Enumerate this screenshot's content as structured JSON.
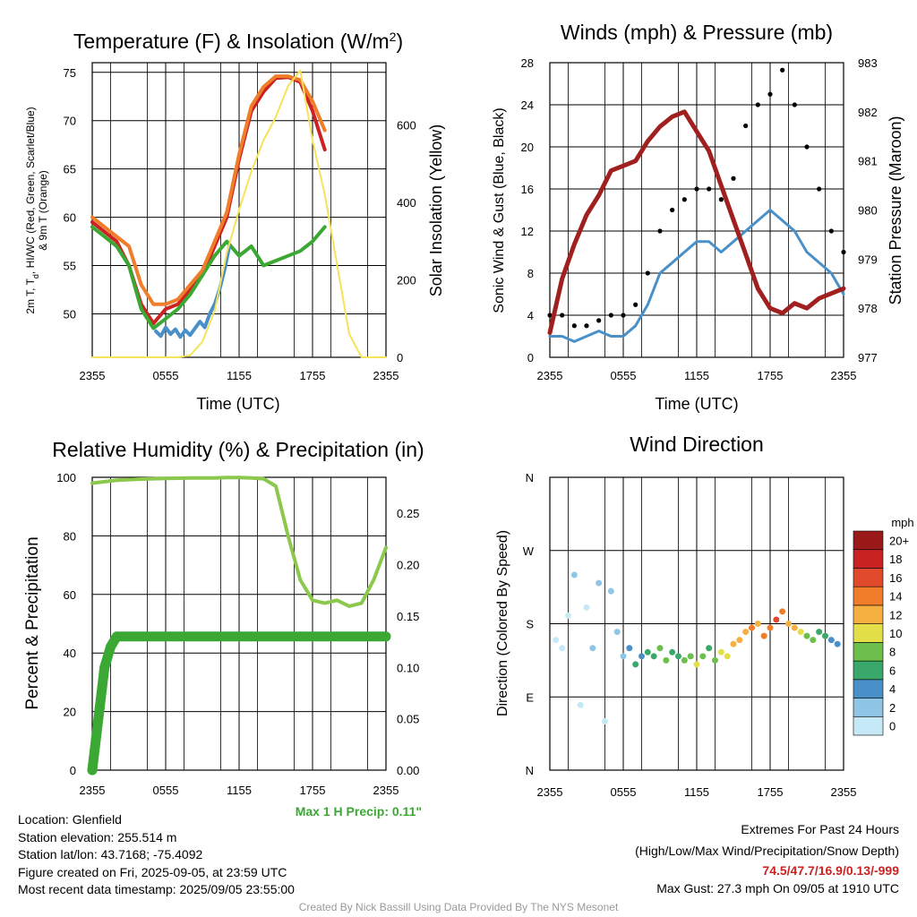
{
  "chart_data": [
    {
      "type": "line",
      "title": "Temperature (F) & Insolation (W/m²)",
      "title_main": "Temperature (F) & Insolation (W/m",
      "title_sup": "2",
      "title_end": ")",
      "xlabel": "Time (UTC)",
      "ylabel": "2m T, Td, HI/WC (Red, Green, Scarlet/Blue) & 9m T (Orange)",
      "ylabel_line1": "2m T, T",
      "ylabel_sub": "d",
      "ylabel_line1_end": ", HI/WC (Red, Green, Scarlet/Blue)",
      "ylabel_line2": "& 9m T (Orange)",
      "y2label": "Solar Insolation (Yellow)",
      "x_ticks": [
        "2355",
        "0555",
        "1155",
        "1755",
        "2355"
      ],
      "ylim": [
        45.5,
        76
      ],
      "y_ticks": [
        50,
        55,
        60,
        65,
        70,
        75
      ],
      "y2lim": [
        0,
        760
      ],
      "y2_ticks": [
        0,
        200,
        400,
        600
      ],
      "series": [
        {
          "name": "2m T",
          "color": "#cc2222",
          "axis": "left",
          "x": [
            0,
            1,
            2,
            3,
            4,
            5,
            6,
            7,
            8,
            9,
            10,
            11,
            12,
            13,
            14,
            15,
            16,
            17,
            18,
            19,
            20,
            21,
            22,
            23,
            24
          ],
          "y": [
            59.5,
            58.5,
            57.5,
            55,
            51,
            49,
            50.5,
            51,
            52.5,
            54,
            57,
            60,
            66,
            71,
            73,
            74.4,
            74.5,
            74,
            71,
            67,
            null,
            null,
            null,
            null,
            null
          ]
        },
        {
          "name": "Dew Point",
          "color": "#3aa832",
          "axis": "left",
          "x": [
            0,
            1,
            2,
            3,
            4,
            5,
            6,
            7,
            8,
            9,
            10,
            11,
            12,
            13,
            14,
            15,
            16,
            17,
            18,
            19,
            20,
            21,
            22,
            23,
            24
          ],
          "y": [
            59,
            58,
            57,
            55,
            50.5,
            48.5,
            49.5,
            50.5,
            52,
            54,
            56,
            57.5,
            56,
            57,
            55,
            55.5,
            56,
            56.5,
            57.5,
            59,
            null,
            null,
            null,
            null,
            null
          ]
        },
        {
          "name": "HI/WC",
          "color": "#4a90c8",
          "axis": "left",
          "x": [
            5.2,
            5.6,
            6,
            6.4,
            6.8,
            7.2,
            7.6,
            8,
            8.4,
            8.8,
            9.2,
            9.6,
            10,
            10.4,
            10.8,
            11.2
          ],
          "y": [
            48.2,
            47.7,
            48.6,
            47.9,
            48.4,
            47.6,
            48.3,
            47.8,
            48.5,
            49.2,
            48.6,
            50,
            51,
            52.5,
            54.5,
            57
          ]
        },
        {
          "name": "9m T",
          "color": "#f07d2a",
          "axis": "left",
          "x": [
            0,
            1,
            2,
            3,
            4,
            5,
            6,
            7,
            8,
            9,
            10,
            11,
            12,
            13,
            14,
            15,
            16,
            17,
            18,
            19,
            20,
            21,
            22,
            23,
            24
          ],
          "y": [
            60,
            59,
            58,
            57,
            53,
            51,
            51,
            51.5,
            53,
            54.5,
            57.5,
            60.5,
            66.5,
            71.5,
            73.5,
            74.6,
            74.6,
            74.2,
            72,
            69,
            null,
            null,
            null,
            null,
            null
          ]
        },
        {
          "name": "Solar Insolation",
          "color": "#f5e35a",
          "axis": "right",
          "x": [
            0,
            1,
            2,
            3,
            4,
            5,
            6,
            7,
            8,
            9,
            10,
            11,
            12,
            13,
            14,
            15,
            16,
            17,
            18,
            19,
            20,
            21,
            22,
            23,
            24
          ],
          "y": [
            0,
            0,
            0,
            0,
            0,
            0,
            0,
            0,
            5,
            40,
            120,
            270,
            380,
            480,
            560,
            620,
            700,
            740,
            560,
            420,
            240,
            60,
            0,
            0,
            0
          ]
        }
      ]
    },
    {
      "type": "line",
      "title": "Winds (mph) & Pressure (mb)",
      "xlabel": "Time (UTC)",
      "ylabel": "Sonic Wind & Gust (Blue, Black)",
      "y2label": "Station Pressure (Maroon)",
      "x_ticks": [
        "2355",
        "0555",
        "1155",
        "1755",
        "2355"
      ],
      "ylim": [
        0,
        28
      ],
      "y_ticks": [
        0,
        4,
        8,
        12,
        16,
        20,
        24,
        28
      ],
      "y2lim": [
        977,
        983
      ],
      "y2_ticks": [
        977,
        978,
        979,
        980,
        981,
        982,
        983
      ],
      "series": [
        {
          "name": "Sonic Wind",
          "color": "#4a90c8",
          "axis": "left",
          "x": [
            0,
            1,
            2,
            3,
            4,
            5,
            6,
            7,
            8,
            9,
            10,
            11,
            12,
            13,
            14,
            15,
            16,
            17,
            18,
            19,
            20,
            21,
            22,
            23,
            24
          ],
          "y": [
            2,
            2,
            1.5,
            2,
            2.5,
            2,
            2,
            3,
            5,
            8,
            9,
            10,
            11,
            11,
            10,
            11,
            12,
            13,
            14,
            13,
            12,
            10,
            9,
            8,
            6
          ]
        },
        {
          "name": "Gust",
          "color": "#000000",
          "axis": "left",
          "x": [
            0,
            1,
            2,
            3,
            4,
            5,
            6,
            7,
            8,
            9,
            10,
            11,
            12,
            13,
            14,
            15,
            16,
            17,
            18,
            19,
            20,
            21,
            22,
            23,
            24
          ],
          "y": [
            4,
            4,
            3,
            3,
            3.5,
            4,
            4,
            5,
            8,
            12,
            14,
            15,
            16,
            16,
            15,
            17,
            22,
            24,
            25,
            27.3,
            24,
            20,
            16,
            12,
            10
          ]
        },
        {
          "name": "Station Pressure",
          "color": "#a01f1f",
          "axis": "right",
          "x": [
            0,
            1,
            2,
            3,
            4,
            5,
            6,
            7,
            8,
            9,
            10,
            11,
            12,
            13,
            14,
            15,
            16,
            17,
            18,
            19,
            20,
            21,
            22,
            23,
            24
          ],
          "y": [
            977.5,
            978.6,
            979.3,
            979.9,
            980.3,
            980.8,
            980.9,
            981.0,
            981.4,
            981.7,
            981.9,
            982.0,
            981.6,
            981.2,
            980.5,
            979.8,
            979.1,
            978.4,
            978.0,
            977.9,
            978.1,
            978.0,
            978.2,
            978.3,
            978.4
          ]
        }
      ]
    },
    {
      "type": "line",
      "title": "Relative Humidity (%) & Precipitation (in)",
      "xlabel": "",
      "ylabel": "Percent & Precipitation",
      "x_ticks": [
        "2355",
        "0555",
        "1155",
        "1755",
        "2355"
      ],
      "ylim": [
        0,
        100
      ],
      "y_ticks": [
        0,
        20,
        40,
        60,
        80,
        100
      ],
      "y2lim": [
        0,
        0.285
      ],
      "y2_ticks": [
        "0.00",
        "0.05",
        "0.10",
        "0.15",
        "0.20",
        "0.25"
      ],
      "series": [
        {
          "name": "Relative Humidity",
          "color": "#8cc84b",
          "axis": "left",
          "x": [
            0,
            1,
            2,
            3,
            4,
            5,
            6,
            7,
            8,
            9,
            10,
            11,
            12,
            13,
            14,
            15,
            16,
            17,
            18,
            19,
            20,
            21,
            22,
            23,
            24
          ],
          "y": [
            98,
            98.5,
            99,
            99.2,
            99.4,
            99.5,
            99.6,
            99.7,
            99.8,
            99.8,
            99.8,
            99.9,
            99.9,
            99.8,
            99.5,
            97,
            80,
            65,
            58,
            57,
            58,
            56,
            57,
            65,
            76
          ]
        },
        {
          "name": "Precipitation",
          "color": "#3aa832",
          "axis": "right",
          "x": [
            0,
            0.3,
            0.6,
            1,
            1.5,
            2,
            24
          ],
          "y": [
            0,
            0.03,
            0.06,
            0.1,
            0.12,
            0.13,
            0.13
          ]
        }
      ],
      "annotation": "Max 1 H Precip: 0.11\""
    },
    {
      "type": "scatter",
      "title": "Wind Direction",
      "xlabel": "",
      "ylabel": "Direction (Colored By Speed)",
      "x_ticks": [
        "2355",
        "0555",
        "1155",
        "1755",
        "2355"
      ],
      "y_ticks": [
        "N",
        "E",
        "S",
        "W",
        "N"
      ],
      "ylim": [
        0,
        360
      ],
      "colorbar_title": "mph",
      "colorbar_labels": [
        "0",
        "2",
        "4",
        "6",
        "8",
        "10",
        "12",
        "14",
        "16",
        "18",
        "20+"
      ],
      "colorbar_colors": [
        "#c6e9f7",
        "#8fc6e6",
        "#4a90c8",
        "#3aa86a",
        "#6cbf4b",
        "#e2df48",
        "#f6b042",
        "#f07d2a",
        "#e04a2a",
        "#c82222",
        "#9a1a1a"
      ],
      "series": [
        {
          "name": "Direction",
          "x": [
            0.5,
            1,
            1.5,
            2,
            2.5,
            3,
            3.5,
            4,
            4.5,
            5,
            5.5,
            6,
            6.5,
            7,
            7.5,
            8,
            8.5,
            9,
            9.5,
            10,
            10.5,
            11,
            11.5,
            12,
            12.5,
            13,
            13.5,
            14,
            14.5,
            15,
            15.5,
            16,
            16.5,
            17,
            17.5,
            18,
            18.5,
            19,
            19.5,
            20,
            20.5,
            21,
            21.5,
            22,
            22.5,
            23,
            23.5
          ],
          "y": [
            160,
            150,
            190,
            240,
            80,
            200,
            150,
            230,
            60,
            220,
            170,
            140,
            150,
            130,
            140,
            145,
            140,
            150,
            135,
            145,
            140,
            135,
            140,
            130,
            140,
            150,
            135,
            145,
            140,
            155,
            160,
            170,
            175,
            180,
            165,
            175,
            185,
            195,
            180,
            175,
            170,
            165,
            160,
            170,
            165,
            160,
            155
          ],
          "speed": [
            1,
            1,
            0,
            2,
            1,
            1,
            3,
            2,
            1,
            3,
            2,
            3,
            4,
            6,
            5,
            6,
            7,
            8,
            9,
            7,
            6,
            8,
            9,
            10,
            8,
            7,
            9,
            10,
            11,
            13,
            13,
            12,
            14,
            13,
            14,
            15,
            16,
            15,
            13,
            12,
            10,
            9,
            8,
            7,
            6,
            5,
            4
          ]
        }
      ]
    }
  ],
  "info_left": [
    "Location: Glenfield",
    "Station elevation: 255.514 m",
    "Station lat/lon: 43.7168; -75.4092",
    "Figure created on Fri, 2025-09-05, at 23:59 UTC",
    "Most recent data timestamp: 2025/09/05 23:55:00"
  ],
  "info_right": {
    "title": "Extremes For Past 24 Hours",
    "subtitle": "(High/Low/Max Wind/Precipitation/Snow Depth)",
    "values": "74.5/47.7/16.9/0.13/-999",
    "gust": "Max Gust: 27.3 mph On 09/05 at 1910 UTC"
  },
  "credit": "Created By Nick Bassill Using Data Provided By The NYS Mesonet"
}
